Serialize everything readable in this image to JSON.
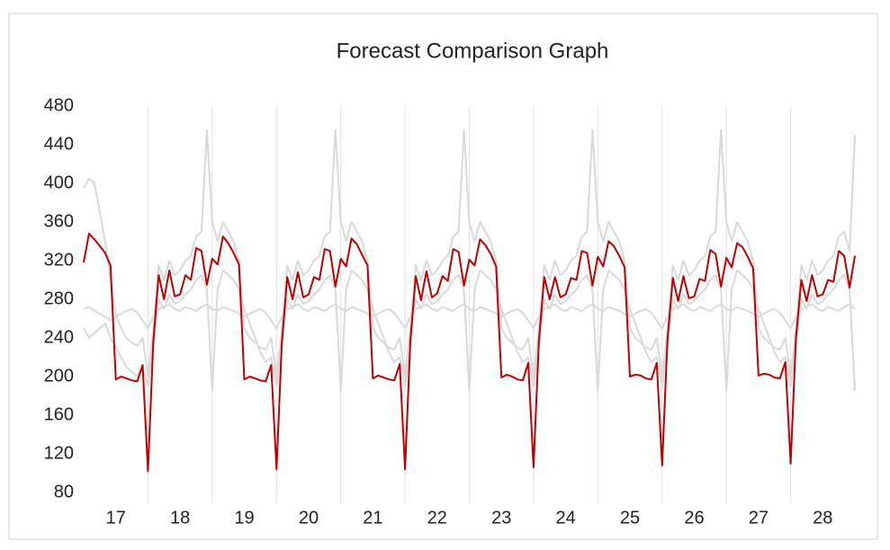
{
  "chart_data": {
    "type": "line",
    "title": "Forecast Comparison Graph",
    "x": [
      16.5,
      16.583,
      16.667,
      16.75,
      16.833,
      16.917,
      17,
      17.083,
      17.167,
      17.25,
      17.333,
      17.417,
      17.5,
      17.583,
      17.667,
      17.75,
      17.833,
      17.917,
      18,
      18.083,
      18.167,
      18.25,
      18.333,
      18.417,
      18.5,
      18.583,
      18.667,
      18.75,
      18.833,
      18.917,
      19,
      19.083,
      19.167,
      19.25,
      19.333,
      19.417,
      19.5,
      19.583,
      19.667,
      19.75,
      19.833,
      19.917,
      20,
      20.083,
      20.167,
      20.25,
      20.333,
      20.417,
      20.5,
      20.583,
      20.667,
      20.75,
      20.833,
      20.917,
      21,
      21.083,
      21.167,
      21.25,
      21.333,
      21.417,
      21.5,
      21.583,
      21.667,
      21.75,
      21.833,
      21.917,
      22,
      22.083,
      22.167,
      22.25,
      22.333,
      22.417,
      22.5,
      22.583,
      22.667,
      22.75,
      22.833,
      22.917,
      23,
      23.083,
      23.167,
      23.25,
      23.333,
      23.417,
      23.5,
      23.583,
      23.667,
      23.75,
      23.833,
      23.917,
      24,
      24.083,
      24.167,
      24.25,
      24.333,
      24.417,
      24.5,
      24.583,
      24.667,
      24.75,
      24.833,
      24.917,
      25,
      25.083,
      25.167,
      25.25,
      25.333,
      25.417,
      25.5,
      25.583,
      25.667,
      25.75,
      25.833,
      25.917,
      26,
      26.083,
      26.167,
      26.25,
      26.333,
      26.417,
      26.5,
      26.583,
      26.667,
      26.75,
      26.833,
      26.917,
      27,
      27.083,
      27.167,
      27.25,
      27.333,
      27.417,
      27.5,
      27.583,
      27.667,
      27.75,
      27.833,
      27.917,
      28,
      28.083,
      28.167,
      28.25,
      28.333,
      28.417,
      28.5
    ],
    "series": [
      {
        "color": "#d9d9d9",
        "values": [
          270,
          272,
          268,
          265,
          262,
          258,
          262,
          265,
          268,
          270,
          266,
          258,
          250,
          262,
          270,
          272,
          275,
          270,
          268,
          272,
          270,
          268,
          272,
          275,
          270,
          268,
          272,
          270,
          268,
          265,
          262,
          265,
          268,
          270,
          266,
          258,
          250,
          262,
          270,
          272,
          275,
          270,
          268,
          272,
          270,
          268,
          272,
          275,
          270,
          268,
          272,
          270,
          268,
          265,
          262,
          265,
          268,
          270,
          266,
          258,
          250,
          262,
          270,
          272,
          275,
          270,
          268,
          272,
          270,
          268,
          272,
          275,
          270,
          268,
          272,
          270,
          268,
          265,
          262,
          265,
          268,
          270,
          266,
          258,
          250,
          262,
          270,
          272,
          275,
          270,
          268,
          272,
          270,
          268,
          272,
          275,
          270,
          268,
          272,
          270,
          268,
          265,
          262,
          265,
          268,
          270,
          266,
          258,
          250,
          262,
          270,
          272,
          275,
          270,
          268,
          272,
          270,
          268,
          272,
          275,
          270,
          268,
          272,
          270,
          268,
          265,
          262,
          265,
          268,
          270,
          266,
          258,
          250,
          262,
          270,
          272,
          275,
          270,
          268,
          272,
          270,
          268,
          272,
          275,
          270
        ]
      },
      {
        "color": "#d9d9d9",
        "values": [
          395,
          405,
          400,
          370,
          340,
          300,
          265,
          250,
          240,
          235,
          232,
          240,
          200,
          250,
          315,
          300,
          320,
          305,
          310,
          320,
          325,
          345,
          350,
          455,
          360,
          340,
          360,
          350,
          340,
          320,
          250,
          240,
          235,
          230,
          228,
          240,
          200,
          250,
          315,
          300,
          320,
          305,
          310,
          320,
          325,
          345,
          350,
          455,
          360,
          340,
          360,
          350,
          340,
          320,
          250,
          240,
          235,
          230,
          228,
          240,
          200,
          250,
          315,
          300,
          320,
          305,
          310,
          320,
          325,
          345,
          350,
          455,
          360,
          340,
          360,
          350,
          340,
          320,
          250,
          240,
          235,
          230,
          228,
          240,
          200,
          250,
          315,
          300,
          320,
          305,
          310,
          320,
          325,
          345,
          350,
          455,
          360,
          340,
          360,
          350,
          340,
          320,
          250,
          240,
          235,
          230,
          228,
          240,
          200,
          250,
          315,
          300,
          320,
          305,
          310,
          320,
          325,
          345,
          350,
          455,
          360,
          340,
          360,
          350,
          340,
          320,
          250,
          240,
          235,
          230,
          228,
          240,
          200,
          250,
          315,
          300,
          320,
          305,
          310,
          320,
          325,
          345,
          350,
          330,
          450
        ]
      },
      {
        "color": "#d9d9d9",
        "values": [
          250,
          240,
          245,
          250,
          255,
          240,
          230,
          220,
          210,
          205,
          200,
          210,
          190,
          230,
          280,
          270,
          285,
          275,
          278,
          285,
          290,
          300,
          305,
          290,
          185,
          290,
          310,
          305,
          300,
          290,
          270,
          255,
          240,
          225,
          215,
          220,
          190,
          230,
          280,
          270,
          285,
          275,
          278,
          285,
          290,
          300,
          305,
          290,
          185,
          290,
          310,
          305,
          300,
          290,
          270,
          255,
          240,
          225,
          215,
          220,
          190,
          230,
          280,
          270,
          285,
          275,
          278,
          285,
          290,
          300,
          305,
          290,
          185,
          290,
          310,
          305,
          300,
          290,
          270,
          255,
          240,
          225,
          215,
          220,
          190,
          230,
          280,
          270,
          285,
          275,
          278,
          285,
          290,
          300,
          305,
          290,
          185,
          290,
          310,
          305,
          300,
          290,
          270,
          255,
          240,
          225,
          215,
          220,
          190,
          230,
          280,
          270,
          285,
          275,
          278,
          285,
          290,
          300,
          305,
          290,
          185,
          290,
          310,
          305,
          300,
          290,
          270,
          255,
          240,
          225,
          215,
          220,
          190,
          230,
          280,
          270,
          285,
          275,
          278,
          285,
          290,
          300,
          305,
          290,
          185
        ]
      },
      {
        "color": "#c00000",
        "values": [
          318,
          348,
          342,
          335,
          328,
          315,
          197,
          200,
          198,
          196,
          195,
          212,
          102,
          235,
          305,
          280,
          310,
          283,
          285,
          305,
          300,
          333,
          330,
          295,
          322,
          316,
          345,
          338,
          328,
          316,
          197,
          200,
          198,
          196,
          195,
          212,
          104,
          235,
          303,
          280,
          308,
          282,
          285,
          303,
          300,
          332,
          330,
          293,
          322,
          314,
          343,
          337,
          326,
          315,
          198,
          201,
          199,
          197,
          196,
          213,
          104,
          237,
          304,
          279,
          309,
          282,
          286,
          304,
          299,
          332,
          329,
          294,
          321,
          315,
          342,
          336,
          327,
          314,
          199,
          202,
          200,
          197,
          196,
          214,
          106,
          236,
          303,
          280,
          303,
          282,
          285,
          302,
          300,
          330,
          328,
          294,
          324,
          314,
          340,
          335,
          325,
          313,
          200,
          202,
          201,
          198,
          197,
          214,
          108,
          238,
          302,
          278,
          304,
          281,
          283,
          301,
          299,
          331,
          327,
          293,
          323,
          313,
          338,
          334,
          324,
          312,
          201,
          203,
          202,
          199,
          198,
          215,
          110,
          240,
          300,
          278,
          305,
          283,
          285,
          300,
          298,
          330,
          325,
          292,
          325
        ]
      }
    ],
    "xlim": [
      16.5,
      28.5
    ],
    "xticks": [
      17,
      18,
      19,
      20,
      21,
      22,
      23,
      24,
      25,
      26,
      27,
      28
    ],
    "ylim": [
      80,
      480
    ],
    "yticks": [
      80,
      120,
      160,
      200,
      240,
      280,
      320,
      360,
      400,
      440,
      480
    ]
  }
}
